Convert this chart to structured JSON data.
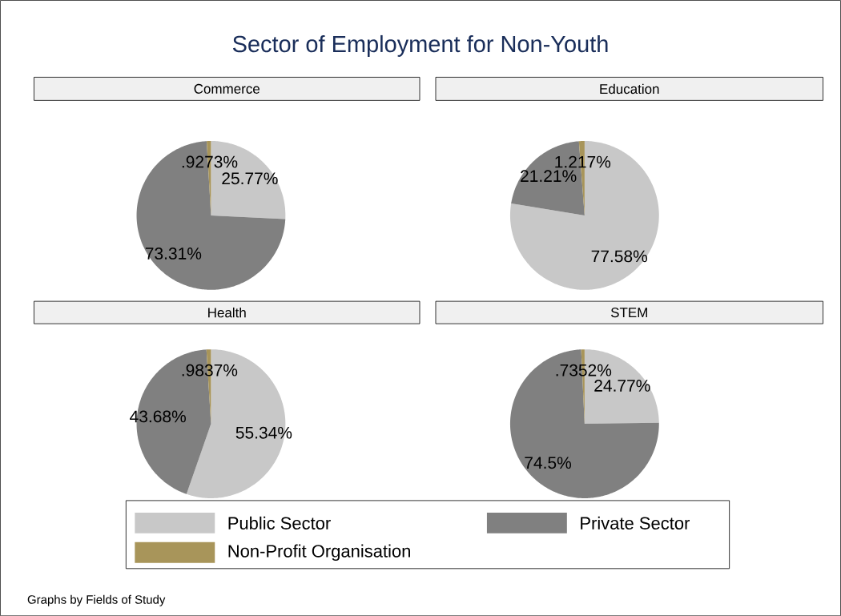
{
  "chart_data": [
    {
      "type": "other",
      "title": "Sector of Employment for Non-Youth",
      "annotations": [
        "Graphs by Fields of Study"
      ]
    },
    {
      "type": "pie",
      "title": "Commerce",
      "categories": [
        "Public Sector",
        "Private Sector",
        "Non-Profit Organisation"
      ],
      "values": [
        25.77,
        73.31,
        0.9273
      ],
      "colors": [
        "#c8c8c8",
        "#808080",
        "#a8955a"
      ],
      "value_labels": [
        "25.77%",
        "73.31%",
        ".9273%"
      ],
      "legend": "bottom"
    },
    {
      "type": "pie",
      "title": "Education",
      "categories": [
        null,
        null,
        null
      ],
      "values": [
        77.58,
        21.21,
        1.217
      ],
      "colors": [
        "#c8c8c8",
        "#808080",
        "#a8955a"
      ],
      "value_labels": [
        "77.58%",
        "21.21%",
        "1.217%"
      ]
    },
    {
      "type": "pie",
      "title": "Health",
      "categories": [
        null,
        null,
        null
      ],
      "values": [
        55.34,
        43.68,
        0.9837
      ],
      "colors": [
        "#c8c8c8",
        "#808080",
        "#a8955a"
      ],
      "value_labels": [
        "55.34%",
        "43.68%",
        ".9837%"
      ]
    },
    {
      "type": "pie",
      "title": "STEM",
      "categories": [
        null,
        null,
        null
      ],
      "values": [
        24.77,
        74.5,
        0.7352
      ],
      "colors": [
        "#c8c8c8",
        "#808080",
        "#a8955a"
      ],
      "value_labels": [
        "24.77%",
        "74.5%",
        ".7352%"
      ]
    }
  ]
}
